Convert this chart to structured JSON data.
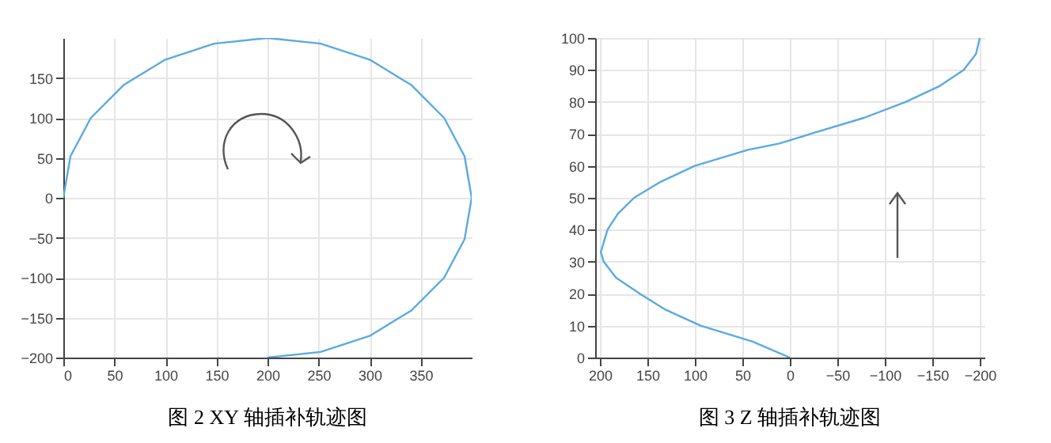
{
  "chart_data": [
    {
      "type": "line",
      "title": "图 2 XY 轴插补轨迹图",
      "xlim": [
        0,
        400
      ],
      "ylim": [
        -200,
        200
      ],
      "xticks": [
        0,
        50,
        100,
        150,
        200,
        250,
        300,
        350
      ],
      "yticks": [
        -200,
        -150,
        -100,
        -50,
        0,
        50,
        100,
        150
      ],
      "grid": true,
      "x": [
        200,
        252,
        300,
        341,
        373,
        393,
        400,
        393,
        373,
        341,
        300,
        252,
        200,
        148,
        100,
        59,
        27,
        7,
        0
      ],
      "series": [
        {
          "color": "#5aaae0",
          "values": [
            -200,
            -193,
            -173,
            -141,
            -100,
            -52,
            0,
            52,
            100,
            141,
            173,
            193,
            200,
            193,
            173,
            141,
            100,
            52,
            0
          ]
        }
      ]
    },
    {
      "type": "line",
      "title": "图 3 Z 轴插补轨迹图",
      "xlim": [
        205,
        -205
      ],
      "ylim": [
        0,
        100
      ],
      "xticks": [
        200,
        150,
        100,
        50,
        0,
        -50,
        -100,
        -150,
        -200
      ],
      "yticks": [
        0,
        10,
        20,
        30,
        40,
        50,
        60,
        70,
        80,
        90,
        100
      ],
      "grid": true,
      "x": [
        0,
        39,
        94,
        131,
        158,
        183,
        196,
        199,
        192,
        181,
        164,
        136,
        100,
        44,
        11,
        -22,
        -78,
        -122,
        -158,
        -183,
        -196,
        -200
      ],
      "series": [
        {
          "color": "#5aaae0",
          "values": [
            0,
            5,
            10,
            15,
            20,
            25,
            30,
            33,
            40,
            45,
            50,
            55,
            60,
            65,
            67,
            70,
            75,
            80,
            85,
            90,
            95,
            100
          ]
        }
      ]
    }
  ]
}
